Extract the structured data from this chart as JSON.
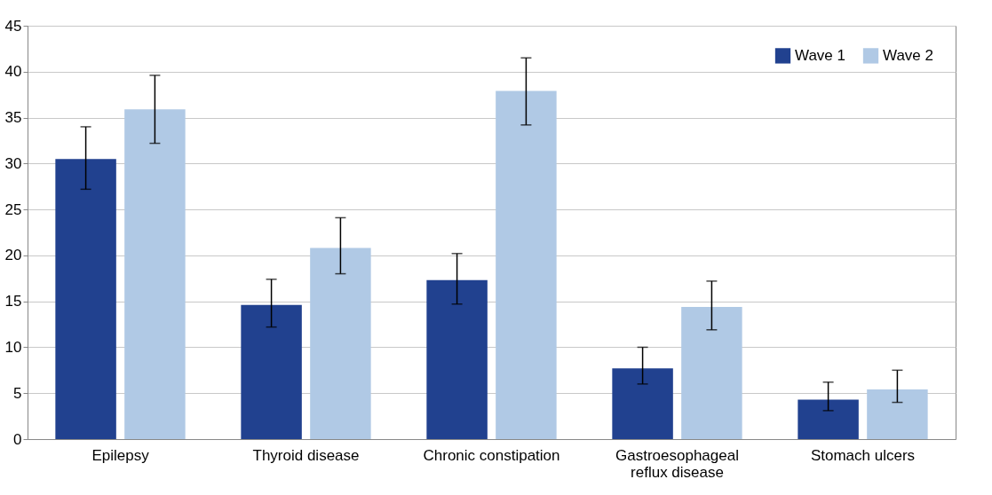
{
  "chart_data": {
    "type": "bar",
    "categories": [
      "Epilepsy",
      "Thyroid disease",
      "Chronic constipation",
      "Gastroesophageal reflux disease",
      "Stomach ulcers"
    ],
    "series": [
      {
        "name": "Wave 1",
        "color": "#21418f",
        "values": [
          30.5,
          14.6,
          17.3,
          7.7,
          4.3
        ],
        "errors": [
          [
            27.2,
            34.0
          ],
          [
            12.2,
            17.4
          ],
          [
            14.7,
            20.2
          ],
          [
            6.0,
            10.0
          ],
          [
            3.1,
            6.2
          ]
        ]
      },
      {
        "name": "Wave 2",
        "color": "#b0c9e5",
        "values": [
          35.9,
          20.8,
          37.9,
          14.4,
          5.4
        ],
        "errors": [
          [
            32.2,
            39.6
          ],
          [
            18.0,
            24.1
          ],
          [
            34.2,
            41.5
          ],
          [
            11.9,
            17.2
          ],
          [
            4.0,
            7.5
          ]
        ]
      }
    ],
    "ylim": [
      0,
      45
    ],
    "yticks": [
      0,
      5,
      10,
      15,
      20,
      25,
      30,
      35,
      40,
      45
    ],
    "grid": "y",
    "legend": "top right"
  }
}
